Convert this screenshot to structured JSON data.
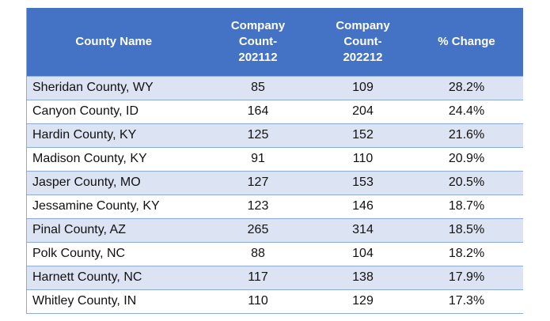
{
  "colors": {
    "header_bg": "#4472C4",
    "header_text": "#FFFFFF",
    "band_bg": "#DCE3F3",
    "border": "#8EA9DB",
    "text": "#111111",
    "page_bg": "#FFFFFF"
  },
  "table": {
    "columns": [
      {
        "label": "County Name"
      },
      {
        "label": "Company\nCount-\n202112"
      },
      {
        "label": "Company\nCount-\n202212"
      },
      {
        "label": "% Change"
      }
    ],
    "rows": [
      [
        "Sheridan County, WY",
        "85",
        "109",
        "28.2%"
      ],
      [
        "Canyon County, ID",
        "164",
        "204",
        "24.4%"
      ],
      [
        "Hardin County, KY",
        "125",
        "152",
        "21.6%"
      ],
      [
        "Madison County, KY",
        "91",
        "110",
        "20.9%"
      ],
      [
        "Jasper County, MO",
        "127",
        "153",
        "20.5%"
      ],
      [
        "Jessamine County, KY",
        "123",
        "146",
        "18.7%"
      ],
      [
        "Pinal County, AZ",
        "265",
        "314",
        "18.5%"
      ],
      [
        "Polk County, NC",
        "88",
        "104",
        "18.2%"
      ],
      [
        "Harnett County, NC",
        "117",
        "138",
        "17.9%"
      ],
      [
        "Whitley County, IN",
        "110",
        "129",
        "17.3%"
      ]
    ]
  },
  "chart_data": {
    "type": "table",
    "title": "",
    "columns": [
      "County Name",
      "Company Count-202112",
      "Company Count-202212",
      "% Change"
    ],
    "rows": [
      [
        "Sheridan County, WY",
        85,
        109,
        "28.2%"
      ],
      [
        "Canyon County, ID",
        164,
        204,
        "24.4%"
      ],
      [
        "Hardin County, KY",
        125,
        152,
        "21.6%"
      ],
      [
        "Madison County, KY",
        91,
        110,
        "20.9%"
      ],
      [
        "Jasper County, MO",
        127,
        153,
        "20.5%"
      ],
      [
        "Jessamine County, KY",
        123,
        146,
        "18.7%"
      ],
      [
        "Pinal County, AZ",
        265,
        314,
        "18.5%"
      ],
      [
        "Polk County, NC",
        88,
        104,
        "18.2%"
      ],
      [
        "Harnett County, NC",
        117,
        138,
        "17.9%"
      ],
      [
        "Whitley County, IN",
        110,
        129,
        "17.3%"
      ]
    ]
  }
}
